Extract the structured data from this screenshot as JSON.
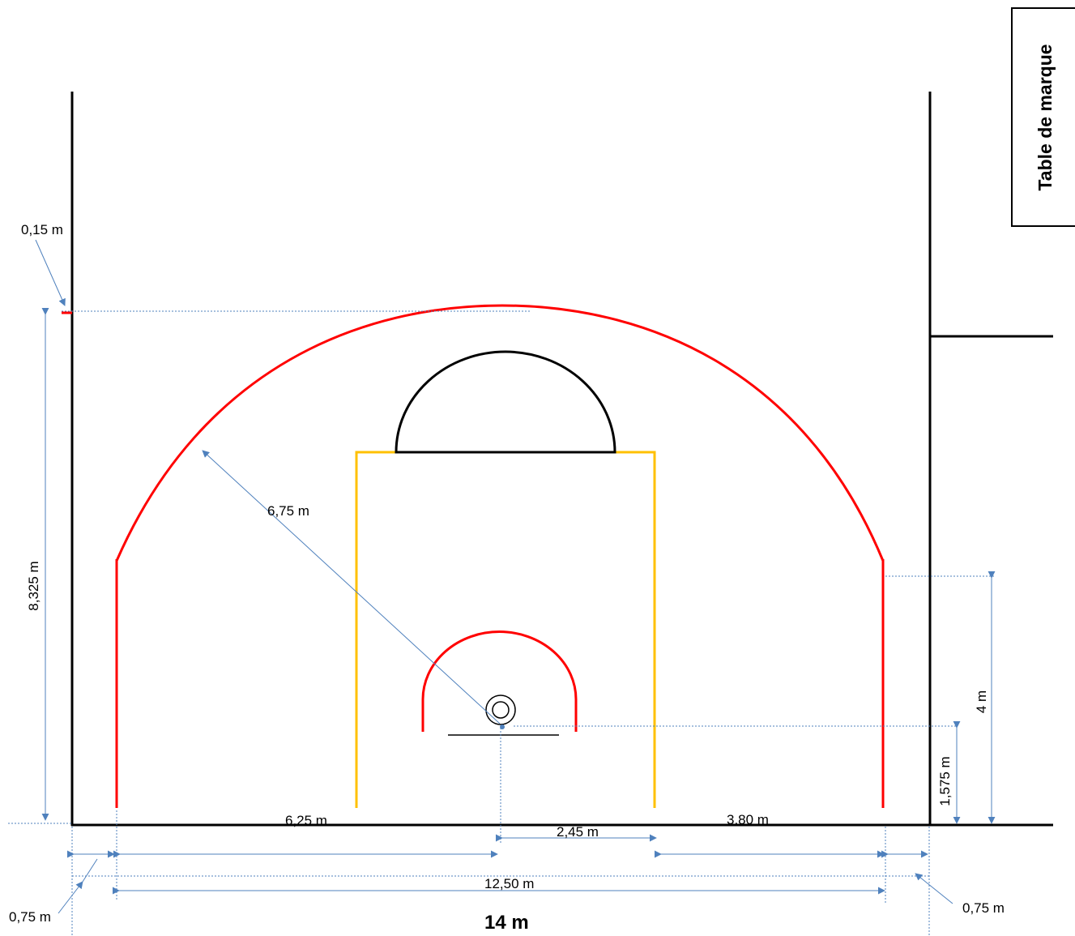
{
  "labels": {
    "table_de_marque": "Table de marque",
    "line_width": "0,15 m",
    "radius_three_point": "6,75 m",
    "three_point_depth": "8,325 m",
    "left_6_25": "6,25 m",
    "lane_2_45": "2,45 m",
    "right_3_80": "3,80 m",
    "width_12_50": "12,50 m",
    "corner_left": "0,75 m",
    "corner_right": "0,75 m",
    "height_4": "4 m",
    "height_1_575": "1,575 m",
    "court_width": "14 m"
  },
  "colors": {
    "court_lines": "#000000",
    "three_point": "#ff0000",
    "lane": "#ffc000",
    "dimensions": "#4f81bd"
  }
}
